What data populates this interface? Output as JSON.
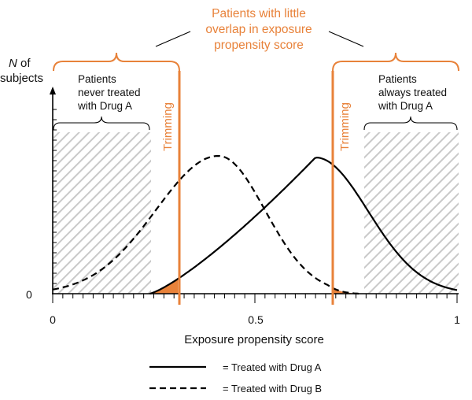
{
  "annotations": {
    "top_label": [
      "Patients with little",
      "overlap in exposure",
      "propensity score"
    ],
    "left_group": [
      "Patients",
      "never treated",
      "with Drug A"
    ],
    "right_group": [
      "Patients",
      "always treated",
      "with Drug A"
    ],
    "trim_left": "Trimming",
    "trim_right": "Trimming"
  },
  "axes": {
    "y_label_italic": "N",
    "y_label_rest": " of",
    "y_label_line2": "subjects",
    "y_zero": "0",
    "x_label": "Exposure propensity score",
    "x_ticks": [
      "0",
      "0.5",
      "1"
    ]
  },
  "legend": {
    "drug_a": "= Treated with Drug A",
    "drug_b": "= Treated with Drug B"
  },
  "style": {
    "accent": "#e8823a",
    "hatch": "#c9c9c9",
    "curve": "#000000"
  },
  "model": {
    "xlim": [
      0,
      1
    ],
    "trim_left_x": 0.31,
    "trim_right_x": 0.69,
    "drug_a_support": [
      0.24,
      1.0
    ],
    "drug_b_support": [
      0.0,
      0.76
    ],
    "drug_a_peak_x": 0.65,
    "drug_b_peak_x": 0.41
  }
}
